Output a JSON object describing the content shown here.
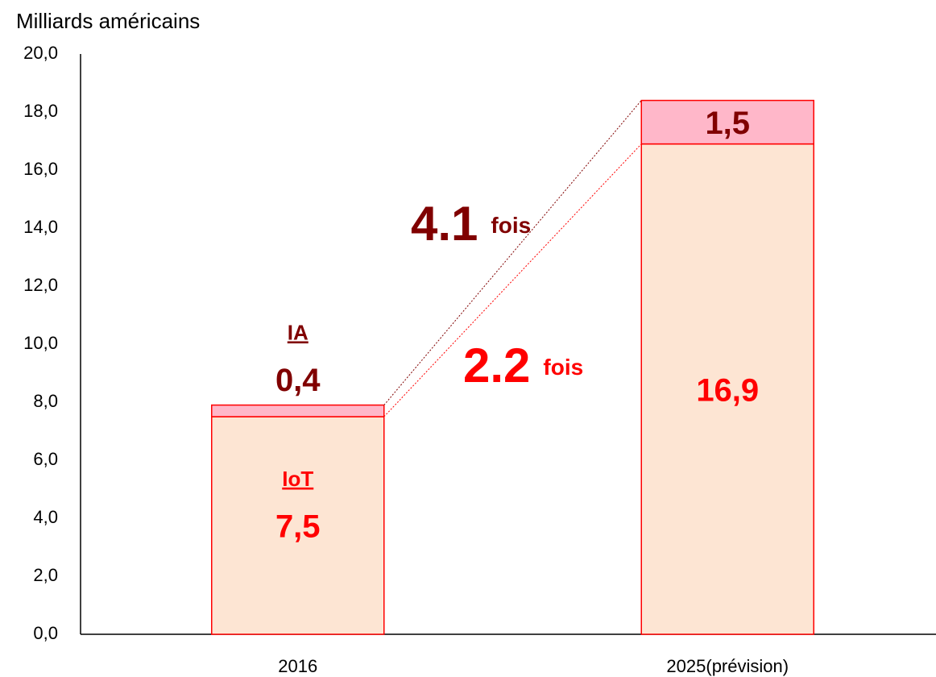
{
  "chart_data": {
    "type": "stacked_bar",
    "y_axis_label": "Milliards américains",
    "categories": [
      "2016",
      "2025(prévision)"
    ],
    "series": [
      {
        "name": "IoT",
        "color": "#fde5d3",
        "stroke": "#ff0000",
        "label_color": "#ff0000",
        "values": [
          7.5,
          16.9
        ],
        "value_labels": [
          "7,5",
          "16,9"
        ]
      },
      {
        "name": "IA",
        "color": "#ffb7c9",
        "stroke": "#ff0000",
        "label_color": "#800000",
        "values": [
          0.4,
          1.5
        ],
        "value_labels": [
          "0,4",
          "1,5"
        ]
      }
    ],
    "ylim": [
      0,
      20
    ],
    "yticks": [
      {
        "value": 0,
        "label": "0,0"
      },
      {
        "value": 2,
        "label": "2,0"
      },
      {
        "value": 4,
        "label": "4,0"
      },
      {
        "value": 6,
        "label": "6,0"
      },
      {
        "value": 8,
        "label": "8,0"
      },
      {
        "value": 10,
        "label": "10,0"
      },
      {
        "value": 12,
        "label": "12,0"
      },
      {
        "value": 14,
        "label": "14,0"
      },
      {
        "value": 16,
        "label": "16,0"
      },
      {
        "value": 18,
        "label": "18,0"
      },
      {
        "value": 20,
        "label": "20,0"
      }
    ],
    "grid": false,
    "annotations": [
      {
        "label": "4.1",
        "unit": "fois",
        "color": "#800000"
      },
      {
        "label": "2.2",
        "unit": "fois",
        "color": "#ff0000"
      }
    ]
  }
}
